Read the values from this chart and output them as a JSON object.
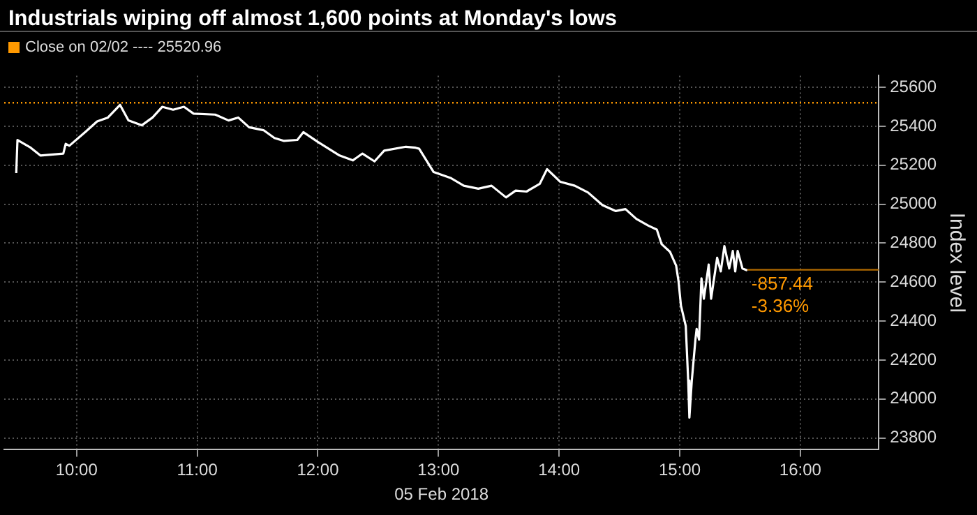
{
  "chart_data": {
    "type": "line",
    "title": "Industrials wiping off almost 1,600 points at Monday's lows",
    "xlabel": "05 Feb 2018",
    "ylabel": "Index level",
    "xlim": [
      9.4,
      16.65
    ],
    "xticks": [
      {
        "value": 10,
        "label": "10:00"
      },
      {
        "value": 11,
        "label": "11:00"
      },
      {
        "value": 12,
        "label": "12:00"
      },
      {
        "value": 13,
        "label": "13:00"
      },
      {
        "value": 14,
        "label": "14:00"
      },
      {
        "value": 15,
        "label": "15:00"
      },
      {
        "value": 16,
        "label": "16:00"
      }
    ],
    "ylim": [
      23740,
      25660
    ],
    "yticks": [
      23800,
      24000,
      24200,
      24400,
      24600,
      24800,
      25000,
      25200,
      25400,
      25600
    ],
    "grid": true,
    "legend": "top left",
    "marker": "none",
    "line_style": "solid",
    "series": [
      {
        "color": "#ffffff",
        "x": [
          9.5,
          9.51,
          9.62,
          9.7,
          9.89,
          9.91,
          9.94,
          10.08,
          10.17,
          10.26,
          10.36,
          10.43,
          10.54,
          10.63,
          10.71,
          10.8,
          10.89,
          10.97,
          11.15,
          11.26,
          11.34,
          11.43,
          11.55,
          11.64,
          11.72,
          11.83,
          11.88,
          12.0,
          12.18,
          12.29,
          12.37,
          12.47,
          12.55,
          12.73,
          12.81,
          12.84,
          12.96,
          13.1,
          13.21,
          13.33,
          13.44,
          13.56,
          13.64,
          13.73,
          13.84,
          13.9,
          14.01,
          14.13,
          14.24,
          14.36,
          14.47,
          14.55,
          14.64,
          14.74,
          14.81,
          14.85,
          14.92,
          14.97,
          14.99,
          15.01,
          15.05,
          15.07,
          15.08,
          15.1,
          15.13,
          15.14,
          15.16,
          15.18,
          15.2,
          15.24,
          15.26,
          15.31,
          15.34,
          15.37,
          15.41,
          15.44,
          15.46,
          15.48,
          15.52,
          15.56
        ],
        "values": [
          25160,
          25330,
          25290,
          25250,
          25260,
          25310,
          25300,
          25375,
          25425,
          25445,
          25510,
          25430,
          25405,
          25445,
          25500,
          25485,
          25500,
          25465,
          25460,
          25430,
          25445,
          25395,
          25380,
          25340,
          25325,
          25330,
          25370,
          25320,
          25250,
          25225,
          25260,
          25220,
          25275,
          25295,
          25290,
          25285,
          25165,
          25135,
          25095,
          25080,
          25095,
          25035,
          25070,
          25065,
          25105,
          25180,
          25115,
          25095,
          25060,
          24995,
          24965,
          24975,
          24925,
          24890,
          24870,
          24795,
          24755,
          24685,
          24605,
          24480,
          24375,
          24095,
          23905,
          24095,
          24305,
          24360,
          24305,
          24620,
          24515,
          24690,
          24515,
          24725,
          24655,
          24785,
          24670,
          24760,
          24655,
          24760,
          24670,
          24660
        ]
      }
    ],
    "ref_lines": [
      {
        "axis": "y",
        "value": 25520.96,
        "label": "Close on 02/02 ---- 25520.96",
        "color": "#ff9900",
        "line_style": "dotted"
      },
      {
        "axis": "y",
        "value": 24663.52,
        "label": null,
        "color": "#b36b00",
        "line_style": "solid"
      }
    ],
    "annotations": [
      {
        "text": "-857.44",
        "x": 15.56,
        "y": 24663.52
      },
      {
        "text": "-3.36%",
        "x": 15.56,
        "y": 24663.52
      }
    ]
  }
}
